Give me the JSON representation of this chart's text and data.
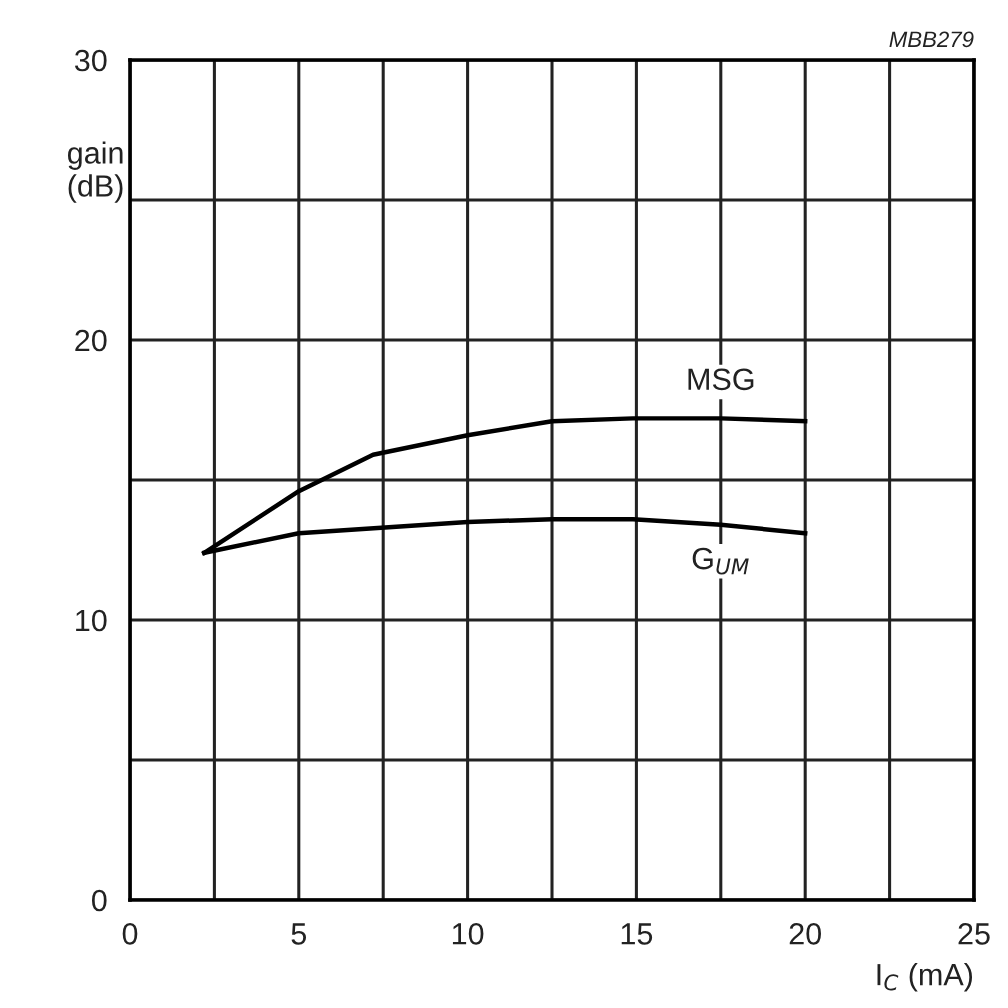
{
  "chart_data": {
    "type": "line",
    "xlabel": "I$_{C}$ (mA)",
    "ylabel": "gain\n(dB)",
    "annotations": [
      "MBB279"
    ],
    "series": [
      {
        "name": "MSG",
        "color": "#000000",
        "x": [
          2.2,
          5,
          7.2,
          10,
          12.5,
          14.9,
          17.5,
          20
        ],
        "values": [
          12.4,
          14.6,
          15.9,
          16.6,
          17.1,
          17.2,
          17.2,
          17.1
        ]
      },
      {
        "name": "G$_{UM}$",
        "color": "#000000",
        "x": [
          2.2,
          5,
          10,
          12.5,
          14.9,
          17.5,
          20
        ],
        "values": [
          12.4,
          13.1,
          13.5,
          13.6,
          13.6,
          13.4,
          13.1
        ]
      }
    ],
    "xlim": [
      0,
      25
    ],
    "ylim": [
      0,
      30
    ],
    "xticks": [
      0,
      {
        "value": 2.5,
        "label": null
      },
      5,
      {
        "value": 7.5,
        "label": null
      },
      10,
      {
        "value": 12.5,
        "label": null
      },
      15,
      {
        "value": 17.5,
        "label": null
      },
      20,
      {
        "value": 22.5,
        "label": null
      },
      25
    ],
    "yticks": [
      0,
      {
        "value": 5,
        "label": null
      },
      10,
      {
        "value": 15,
        "label": null
      },
      20,
      {
        "value": 25,
        "label": null
      },
      30
    ],
    "grid": true,
    "marker": "none",
    "line_style": "solid"
  }
}
